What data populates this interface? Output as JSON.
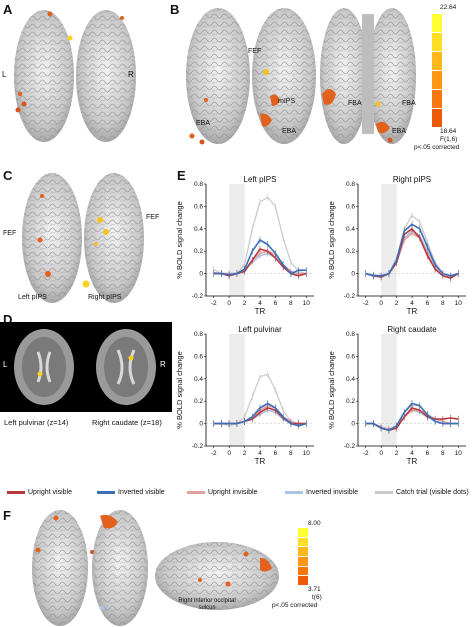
{
  "panels": {
    "a": "A",
    "b": "B",
    "c": "C",
    "d": "D",
    "e": "E",
    "f": "F"
  },
  "panel_a": {
    "left": "L",
    "right": "R"
  },
  "panel_b": {
    "labels": {
      "fef": "FEF",
      "mips": "mIPS",
      "eba_left": "EBA",
      "eba_mid": "EBA",
      "fba_left": "FBA",
      "fba_right": "FBA",
      "eba_right": "EBA"
    },
    "colorbar": {
      "max": "22.64",
      "min": "18.64",
      "stat": "F(1,6)",
      "note": "p<.05 corrected",
      "colors": [
        "#ffff33",
        "#ffdd22",
        "#ffb71a",
        "#ff9514",
        "#f8770f",
        "#ee5a0a"
      ]
    }
  },
  "panel_c": {
    "fef_left": "FEF",
    "fef_right": "FEF",
    "left_pips": "Left pIPS",
    "right_pips": "Right pIPS"
  },
  "panel_d": {
    "left": "L",
    "right": "R",
    "caption_left": "Left pulvinar (z=14)",
    "caption_right": "Right caudate (z=18)"
  },
  "panel_e": {
    "ylabel": "% BOLD signal change",
    "xlabel": "TR",
    "xticks": [
      "-2",
      "0",
      "2",
      "4",
      "6",
      "8",
      "10"
    ],
    "yticks": [
      "-0.2",
      "0",
      "0.2",
      "0.4",
      "0.6",
      "0.8"
    ],
    "subplots": {
      "left_pips": "Left pIPS",
      "right_pips": "Right pIPS",
      "left_pulvinar": "Left pulvinar",
      "right_caudate": "Right caudate"
    }
  },
  "chart_data": [
    {
      "type": "line",
      "title": "Left pIPS",
      "xlabel": "TR",
      "ylabel": "% BOLD signal change",
      "xlim": [
        -3,
        11
      ],
      "ylim": [
        -0.2,
        0.8
      ],
      "x": [
        -2,
        -1,
        0,
        1,
        2,
        3,
        4,
        5,
        6,
        7,
        8,
        9,
        10
      ],
      "series": [
        {
          "name": "Upright visible",
          "color": "#b83a3a",
          "values": [
            0.0,
            0.0,
            -0.02,
            0.0,
            0.02,
            0.12,
            0.22,
            0.2,
            0.14,
            0.06,
            0.0,
            -0.02,
            0.0
          ]
        },
        {
          "name": "Inverted visible",
          "color": "#3a6fb8",
          "values": [
            0.0,
            0.0,
            -0.01,
            0.0,
            0.04,
            0.2,
            0.3,
            0.26,
            0.18,
            0.08,
            0.0,
            0.03,
            0.03
          ]
        },
        {
          "name": "Upright invisible",
          "color": "#e2a0a0",
          "values": [
            0.01,
            0.0,
            0.0,
            0.0,
            0.03,
            0.12,
            0.18,
            0.2,
            0.17,
            0.08,
            0.02,
            0.0,
            0.0
          ]
        },
        {
          "name": "Inverted invisible",
          "color": "#a9c4e6",
          "values": [
            0.0,
            0.0,
            0.0,
            0.0,
            0.03,
            0.1,
            0.16,
            0.18,
            0.14,
            0.06,
            0.0,
            0.0,
            0.0
          ]
        },
        {
          "name": "Catch trial (visible dots)",
          "color": "#c8c8c8",
          "values": [
            0.04,
            0.0,
            -0.02,
            0.0,
            0.08,
            0.4,
            0.64,
            0.68,
            0.6,
            0.32,
            0.1,
            0.02,
            0.0
          ]
        }
      ]
    },
    {
      "type": "line",
      "title": "Right pIPS",
      "xlabel": "TR",
      "ylabel": "% BOLD signal change",
      "xlim": [
        -3,
        11
      ],
      "ylim": [
        -0.2,
        0.8
      ],
      "x": [
        -2,
        -1,
        0,
        1,
        2,
        3,
        4,
        5,
        6,
        7,
        8,
        9,
        10
      ],
      "series": [
        {
          "name": "Upright visible",
          "color": "#b83a3a",
          "values": [
            0.0,
            -0.02,
            -0.03,
            0.0,
            0.1,
            0.35,
            0.4,
            0.32,
            0.16,
            0.04,
            -0.02,
            -0.04,
            0.0
          ]
        },
        {
          "name": "Inverted visible",
          "color": "#3a6fb8",
          "values": [
            0.0,
            -0.02,
            -0.02,
            0.0,
            0.12,
            0.38,
            0.44,
            0.4,
            0.24,
            0.08,
            0.0,
            -0.02,
            0.0
          ]
        },
        {
          "name": "Upright invisible",
          "color": "#e2a0a0",
          "values": [
            0.0,
            -0.02,
            -0.02,
            0.0,
            0.1,
            0.3,
            0.36,
            0.32,
            0.18,
            0.05,
            -0.02,
            -0.03,
            0.0
          ]
        },
        {
          "name": "Inverted invisible",
          "color": "#a9c4e6",
          "values": [
            0.0,
            -0.01,
            -0.02,
            0.0,
            0.1,
            0.32,
            0.38,
            0.34,
            0.2,
            0.06,
            0.0,
            -0.02,
            0.0
          ]
        },
        {
          "name": "Catch trial (visible dots)",
          "color": "#c8c8c8",
          "values": [
            0.0,
            -0.02,
            -0.03,
            0.0,
            0.14,
            0.4,
            0.52,
            0.46,
            0.28,
            0.1,
            0.0,
            -0.02,
            0.0
          ]
        }
      ]
    },
    {
      "type": "line",
      "title": "Left pulvinar",
      "xlabel": "TR",
      "ylabel": "% BOLD signal change",
      "xlim": [
        -3,
        11
      ],
      "ylim": [
        -0.2,
        0.8
      ],
      "x": [
        -2,
        -1,
        0,
        1,
        2,
        3,
        4,
        5,
        6,
        7,
        8,
        9,
        10
      ],
      "series": [
        {
          "name": "Upright visible",
          "color": "#b83a3a",
          "values": [
            0.0,
            0.0,
            0.0,
            0.0,
            0.02,
            0.04,
            0.1,
            0.14,
            0.12,
            0.05,
            0.0,
            0.0,
            0.0
          ]
        },
        {
          "name": "Inverted visible",
          "color": "#3a6fb8",
          "values": [
            0.0,
            0.0,
            0.0,
            0.0,
            0.02,
            0.06,
            0.14,
            0.18,
            0.14,
            0.06,
            0.0,
            -0.02,
            0.0
          ]
        },
        {
          "name": "Upright invisible",
          "color": "#e2a0a0",
          "values": [
            0.0,
            0.0,
            0.0,
            0.0,
            0.02,
            0.06,
            0.12,
            0.16,
            0.14,
            0.06,
            0.02,
            0.0,
            0.0
          ]
        },
        {
          "name": "Inverted invisible",
          "color": "#a9c4e6",
          "values": [
            0.0,
            0.0,
            0.0,
            0.0,
            0.02,
            0.04,
            0.08,
            0.12,
            0.1,
            0.04,
            0.0,
            0.0,
            0.0
          ]
        },
        {
          "name": "Catch trial (visible dots)",
          "color": "#c8c8c8",
          "values": [
            0.0,
            0.0,
            -0.02,
            0.0,
            0.06,
            0.24,
            0.42,
            0.44,
            0.3,
            0.12,
            0.02,
            0.0,
            0.0
          ]
        }
      ]
    },
    {
      "type": "line",
      "title": "Right caudate",
      "xlabel": "TR",
      "ylabel": "% BOLD signal change",
      "xlim": [
        -3,
        11
      ],
      "ylim": [
        -0.2,
        0.8
      ],
      "x": [
        -2,
        -1,
        0,
        1,
        2,
        3,
        4,
        5,
        6,
        7,
        8,
        9,
        10
      ],
      "series": [
        {
          "name": "Upright visible",
          "color": "#b83a3a",
          "values": [
            0.0,
            0.0,
            -0.04,
            -0.06,
            -0.04,
            0.06,
            0.14,
            0.12,
            0.06,
            0.04,
            0.04,
            0.05,
            0.04
          ]
        },
        {
          "name": "Inverted visible",
          "color": "#3a6fb8",
          "values": [
            0.0,
            0.0,
            -0.04,
            -0.06,
            -0.02,
            0.1,
            0.18,
            0.16,
            0.08,
            0.02,
            0.0,
            0.0,
            0.0
          ]
        },
        {
          "name": "Upright invisible",
          "color": "#e2a0a0",
          "values": [
            0.0,
            0.0,
            -0.03,
            -0.05,
            -0.03,
            0.06,
            0.12,
            0.12,
            0.08,
            0.04,
            0.02,
            0.0,
            0.0
          ]
        },
        {
          "name": "Inverted invisible",
          "color": "#a9c4e6",
          "values": [
            0.0,
            0.0,
            -0.03,
            -0.05,
            -0.03,
            0.06,
            0.12,
            0.1,
            0.06,
            0.02,
            0.0,
            0.0,
            0.0
          ]
        },
        {
          "name": "Catch trial (visible dots)",
          "color": "#c8c8c8",
          "values": [
            0.0,
            0.0,
            -0.04,
            -0.06,
            -0.02,
            0.1,
            0.16,
            0.16,
            0.08,
            0.02,
            0.0,
            0.0,
            0.0
          ]
        }
      ]
    }
  ],
  "legend": [
    {
      "label": "Upright visible",
      "color": "#b83a3a"
    },
    {
      "label": "Inverted visible",
      "color": "#3a6fb8"
    },
    {
      "label": "Upright invisible",
      "color": "#e2a0a0"
    },
    {
      "label": "Inverted invisible",
      "color": "#a9c4e6"
    },
    {
      "label": "Catch trial (visible dots)",
      "color": "#c8c8c8"
    }
  ],
  "panel_f": {
    "label": "Right inferior occipital sulcus",
    "colorbar": {
      "max": "8.00",
      "min": "3.71",
      "stat": "t(6)",
      "note": "p<.05 corrected",
      "colors": [
        "#ffff33",
        "#ffdd22",
        "#ffb71a",
        "#ff9514",
        "#f8770f",
        "#ee5a0a"
      ]
    }
  }
}
